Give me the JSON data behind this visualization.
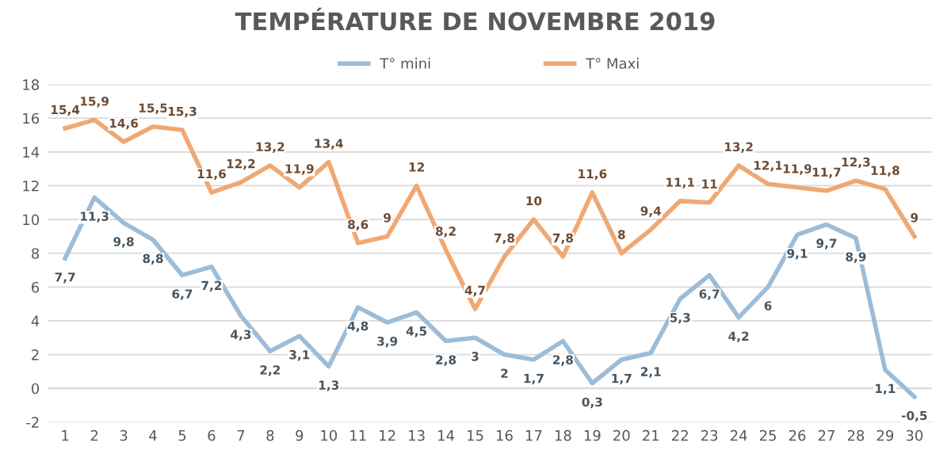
{
  "chart_data": {
    "type": "line",
    "title": "TEMPÉRATURE DE NOVEMBRE 2019",
    "categories": [
      "1",
      "2",
      "3",
      "4",
      "5",
      "6",
      "7",
      "8",
      "9",
      "10",
      "11",
      "12",
      "13",
      "14",
      "15",
      "16",
      "17",
      "18",
      "19",
      "20",
      "21",
      "22",
      "23",
      "24",
      "25",
      "26",
      "27",
      "28",
      "29",
      "30"
    ],
    "series": [
      {
        "name": "T° mini",
        "color": "#9cbcd8",
        "values": [
          7.7,
          11.3,
          9.8,
          8.8,
          6.7,
          7.2,
          4.3,
          2.2,
          3.1,
          1.3,
          4.8,
          3.9,
          4.5,
          2.8,
          3,
          2,
          1.7,
          2.8,
          0.3,
          1.7,
          2.1,
          5.3,
          6.7,
          4.2,
          6,
          9.1,
          9.7,
          8.9,
          1.1,
          -0.5
        ],
        "value_labels": [
          "7,7",
          "11,3",
          "9,8",
          "8,8",
          "6,7",
          "7,2",
          "4,3",
          "2,2",
          "3,1",
          "1,3",
          "4,8",
          "3,9",
          "4,5",
          "2,8",
          "3",
          "2",
          "1,7",
          "2,8",
          "0,3",
          "1,7",
          "2,1",
          "5,3",
          "6,7",
          "4,2",
          "6",
          "9,1",
          "9,7",
          "8,9",
          "1,1",
          "-0,5"
        ]
      },
      {
        "name": "T° Maxi",
        "color": "#f0a873",
        "values": [
          15.4,
          15.9,
          14.6,
          15.5,
          15.3,
          11.6,
          12.2,
          13.2,
          11.9,
          13.4,
          8.6,
          9,
          12,
          8.2,
          4.7,
          7.8,
          10,
          7.8,
          11.6,
          8,
          9.4,
          11.1,
          11,
          13.2,
          12.1,
          11.9,
          11.7,
          12.3,
          11.8,
          9
        ],
        "value_labels": [
          "15,4",
          "15,9",
          "14,6",
          "15,5",
          "15,3",
          "11,6",
          "12,2",
          "13,2",
          "11,9",
          "13,4",
          "8,6",
          "9",
          "12",
          "8,2",
          "4,7",
          "7,8",
          "10",
          "7,8",
          "11,6",
          "8",
          "9,4",
          "11,1",
          "11",
          "13,2",
          "12,1",
          "11,9",
          "11,7",
          "12,3",
          "11,8",
          "9"
        ]
      }
    ],
    "ylim": [
      -2,
      18
    ],
    "yticks": [
      -2,
      0,
      2,
      4,
      6,
      8,
      10,
      12,
      14,
      16,
      18
    ],
    "grid": "y",
    "legend": "top",
    "marker": "none",
    "line_style": "solid"
  }
}
